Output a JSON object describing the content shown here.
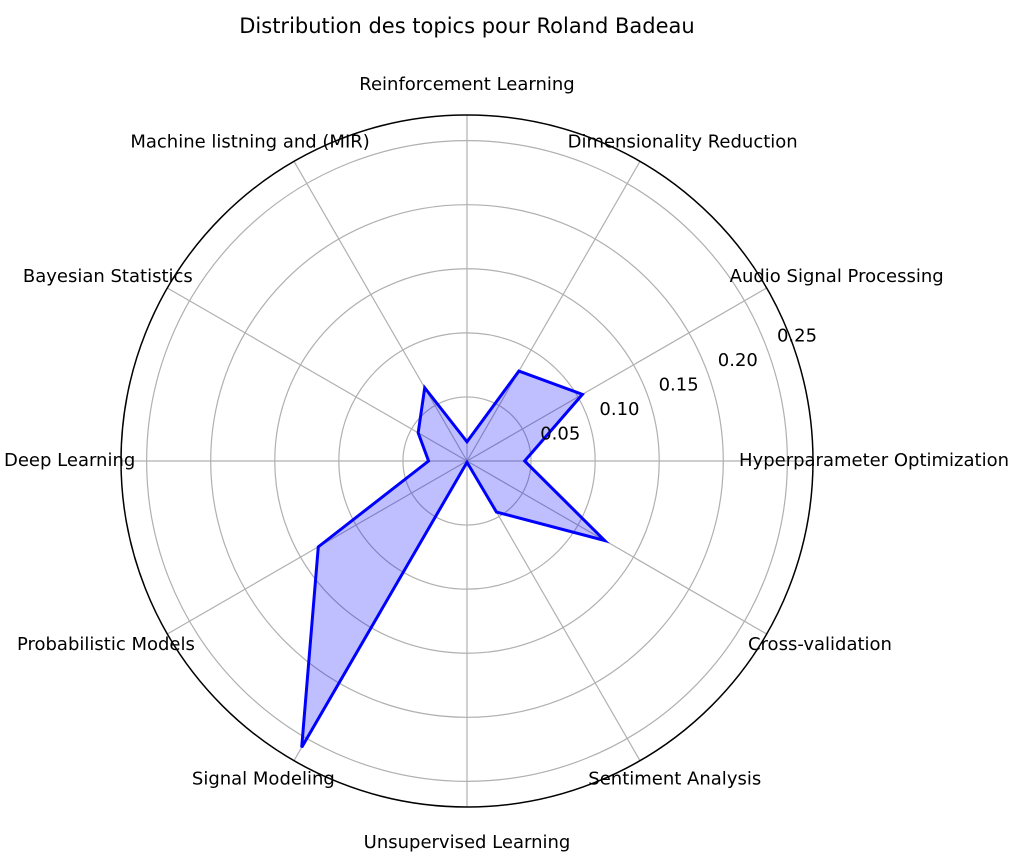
{
  "chart_data": {
    "type": "radar",
    "title": "Distribution des topics pour Roland Badeau",
    "categories": [
      "Hyperparameter Optimization",
      "Audio Signal Processing",
      "Dimensionality Reduction",
      "Reinforcement Learning",
      "Machine listning and (MIR)",
      "Bayesian Statistics",
      "Deep Learning",
      "Probabilistic Models",
      "Signal Modeling",
      "Unsupervised Learning",
      "Sentiment Analysis",
      "Cross-validation"
    ],
    "series": [
      {
        "values": [
          0.045,
          0.104,
          0.081,
          0.015,
          0.066,
          0.044,
          0.03,
          0.134,
          0.258,
          0.001,
          0.046,
          0.124
        ],
        "color": "#0000ff",
        "fill": "#0000ff",
        "fill_opacity": 0.25
      }
    ],
    "rlim": [
      0,
      0.27
    ],
    "rticks": [
      0.05,
      0.1,
      0.15,
      0.2,
      0.25
    ],
    "rtick_labels": [
      "0.05",
      "0.10",
      "0.15",
      "0.20",
      "0.25"
    ],
    "grid": true,
    "start_angle_deg": 0,
    "direction": "counterclockwise"
  }
}
